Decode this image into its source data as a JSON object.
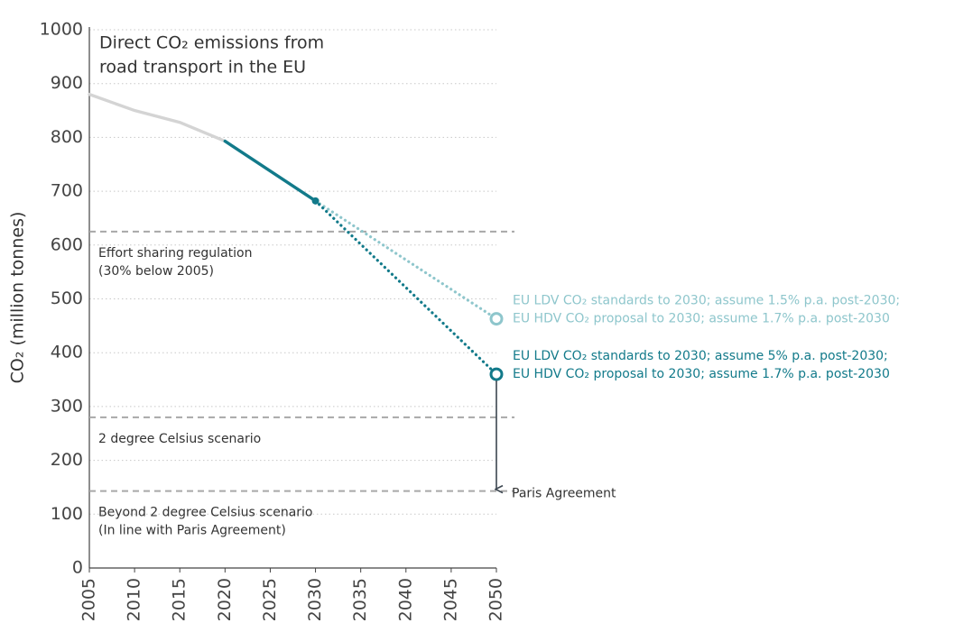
{
  "chart_data": {
    "type": "line",
    "title_lines": [
      "Direct CO₂ emissions from",
      "road transport in the EU"
    ],
    "y_label": "CO₂ (million tonnes)",
    "xlim": [
      2005,
      2050
    ],
    "xticks": [
      2005,
      2010,
      2015,
      2020,
      2025,
      2030,
      2035,
      2040,
      2045,
      2050
    ],
    "ylim": [
      0,
      1000
    ],
    "yticks": [
      0,
      100,
      200,
      300,
      400,
      500,
      600,
      700,
      800,
      900,
      1000
    ],
    "grid": true,
    "series": [
      {
        "color": "#d4d4d4",
        "style": "solid",
        "x": [
          2005,
          2010,
          2015,
          2020
        ],
        "values": [
          880,
          850,
          828,
          793
        ]
      },
      {
        "color": "#127a8a",
        "style": "solid",
        "x": [
          2020,
          2030
        ],
        "values": [
          793,
          682
        ]
      },
      {
        "color": "#8ec6cc",
        "style": "dotted",
        "x": [
          2030,
          2050
        ],
        "values": [
          682,
          463
        ],
        "label_lines": [
          "EU LDV CO₂ standards to 2030; assume 1.5% p.a. post-2030;",
          "EU HDV CO₂ proposal to 2030; assume 1.7% p.a. post-2030"
        ]
      },
      {
        "color": "#127a8a",
        "style": "dotted",
        "x": [
          2030,
          2050
        ],
        "values": [
          682,
          360
        ],
        "label_lines": [
          "EU LDV CO₂ standards to 2030; assume 5% p.a. post-2030;",
          "EU HDV CO₂ proposal to 2030; assume 1.7% p.a. post-2030"
        ]
      }
    ],
    "reference_lines": [
      {
        "value": 625,
        "label_lines": [
          "Effort sharing regulation",
          "(30% below 2005)"
        ]
      },
      {
        "value": 280,
        "label_lines": [
          "2 degree Celsius scenario"
        ]
      },
      {
        "value": 143,
        "label_lines": [
          "Beyond 2 degree Celsius scenario",
          "(In line with Paris Agreement)"
        ]
      }
    ],
    "arrow_label": "Paris Agreement"
  }
}
